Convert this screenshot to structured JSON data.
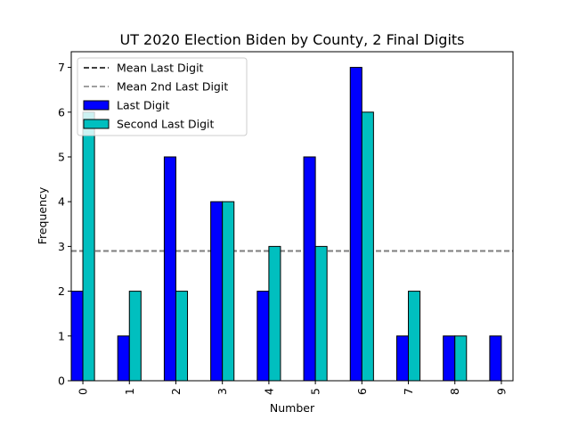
{
  "chart_data": {
    "type": "bar",
    "title": "UT 2020 Election Biden by County, 2 Final Digits",
    "xlabel": "Number",
    "ylabel": "Frequency",
    "categories": [
      "0",
      "1",
      "2",
      "3",
      "4",
      "5",
      "6",
      "7",
      "8",
      "9"
    ],
    "series": [
      {
        "name": "Last Digit",
        "color": "#0000ff",
        "values": [
          2,
          1,
          5,
          4,
          2,
          5,
          7,
          1,
          1,
          1
        ]
      },
      {
        "name": "Second Last Digit",
        "color": "#00bfbf",
        "values": [
          6,
          2,
          2,
          4,
          3,
          3,
          6,
          2,
          1,
          0
        ]
      }
    ],
    "reference_lines": [
      {
        "name": "Mean Last Digit",
        "value": 2.9,
        "color": "#000000",
        "style": "dashed"
      },
      {
        "name": "Mean 2nd Last Digit",
        "value": 2.9,
        "color": "#808080",
        "style": "dashed"
      }
    ],
    "ylim": [
      0,
      7.35
    ],
    "yticks": [
      0,
      1,
      2,
      3,
      4,
      5,
      6,
      7
    ],
    "grid": false,
    "legend_position": "top-left",
    "legend_order": [
      "Mean Last Digit",
      "Mean 2nd Last Digit",
      "Last Digit",
      "Second Last Digit"
    ]
  }
}
